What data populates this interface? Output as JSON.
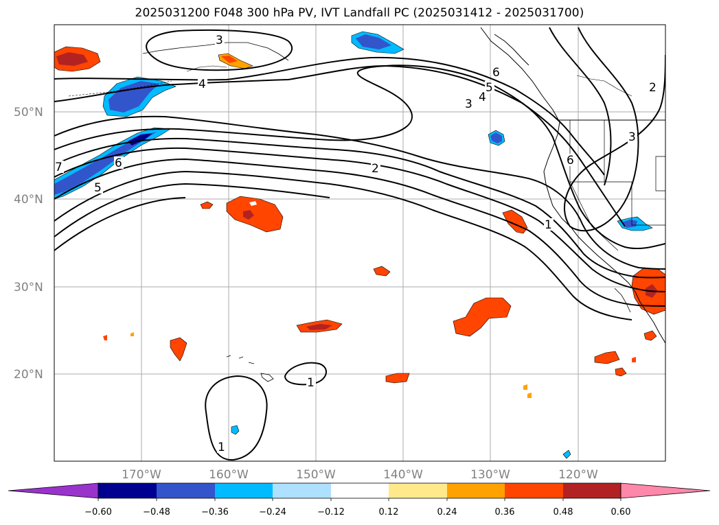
{
  "title": "2025031200 F048 300 hPa PV, IVT Landfall PC (2025031412 - 2025031700)",
  "map": {
    "lat_labels": [
      "50°N",
      "40°N",
      "30°N",
      "20°N"
    ],
    "lon_labels": [
      "170°W",
      "160°W",
      "150°W",
      "140°W",
      "130°W",
      "120°W"
    ],
    "lat_range": [
      10,
      60
    ],
    "lon_range": [
      -180,
      -110
    ],
    "grid": true
  },
  "contour_labels": [
    {
      "text": "3",
      "id": "c3-north"
    },
    {
      "text": "4",
      "id": "c4-west"
    },
    {
      "text": "3",
      "id": "c3-mid"
    },
    {
      "text": "4",
      "id": "c4-mid"
    },
    {
      "text": "5",
      "id": "c5-alaska"
    },
    {
      "text": "6",
      "id": "c6-alaska"
    },
    {
      "text": "2",
      "id": "c2-east"
    },
    {
      "text": "3",
      "id": "c3-east"
    },
    {
      "text": "6",
      "id": "c6-coast"
    },
    {
      "text": "7",
      "id": "c7-west"
    },
    {
      "text": "6",
      "id": "c6-west"
    },
    {
      "text": "5",
      "id": "c5-west"
    },
    {
      "text": "2",
      "id": "c2-center"
    },
    {
      "text": "1",
      "id": "c1-coast"
    },
    {
      "text": "1",
      "id": "c1-hawaii-east"
    },
    {
      "text": "1",
      "id": "c1-south"
    }
  ],
  "colorbar": {
    "ticks": [
      "−0.60",
      "−0.48",
      "−0.36",
      "−0.24",
      "−0.12",
      "0.12",
      "0.24",
      "0.36",
      "0.48",
      "0.60"
    ],
    "colors": [
      "#9933cc",
      "#000090",
      "#3355cc",
      "#00bbff",
      "#aee0ff",
      "#ffffff",
      "#ffe98a",
      "#ffa200",
      "#ff4500",
      "#b22222",
      "#ff88aa"
    ]
  },
  "colors": {
    "neg_strong": "#3355cc",
    "neg_medium": "#00bbff",
    "neg_dark": "#000090",
    "pos_medium": "#ff4500",
    "pos_dark": "#b22222",
    "pos_light": "#ffa200",
    "pos_lightest": "#ffe98a"
  }
}
